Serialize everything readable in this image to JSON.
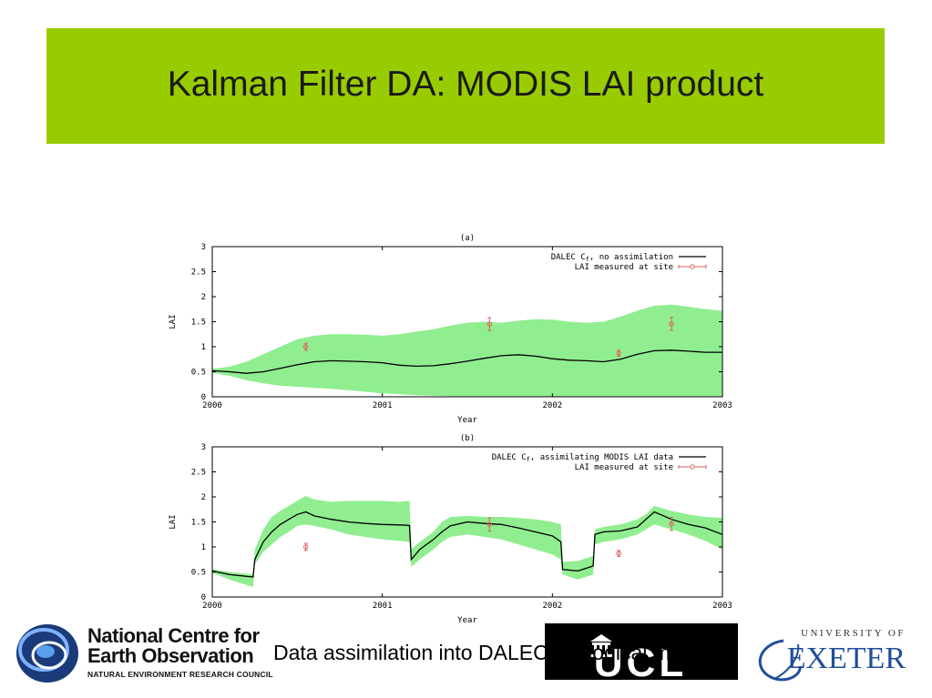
{
  "slide": {
    "title": "Kalman Filter DA: MODIS LAI product",
    "caption": "Data assimilation into DALEC ecological model",
    "banner_color": "#99cc00"
  },
  "logos": {
    "nceo_line1": "National Centre for",
    "nceo_line2": "Earth Observation",
    "nceo_line3": "NATURAL ENVIRONMENT RESEARCH COUNCIL",
    "ucl_text": "UCL",
    "exeter_top": "UNIVERSITY OF",
    "exeter_name": "EXETER"
  },
  "chart_data": [
    {
      "type": "line",
      "title": "(a)",
      "xlabel": "Year",
      "ylabel": "LAI",
      "xlim": [
        2000,
        2003
      ],
      "ylim": [
        0,
        3
      ],
      "x_ticks": [
        "2000",
        "2001",
        "2002",
        "2003"
      ],
      "y_ticks": [
        "0",
        "0.5",
        "1",
        "1.5",
        "2",
        "2.5",
        "3"
      ],
      "legend_position": "top-right",
      "legend": [
        "DALEC C",
        "f",
        ", no assimilation",
        "LAI measured at site"
      ],
      "series": [
        {
          "name": "DALEC Cf, no assimilation",
          "color": "#000000",
          "x": [
            2000,
            2000.1,
            2000.2,
            2000.3,
            2000.4,
            2000.5,
            2000.6,
            2000.7,
            2000.8,
            2000.9,
            2001,
            2001.1,
            2001.2,
            2001.3,
            2001.4,
            2001.5,
            2001.6,
            2001.7,
            2001.8,
            2001.9,
            2002,
            2002.1,
            2002.2,
            2002.3,
            2002.4,
            2002.5,
            2002.6,
            2002.7,
            2002.8,
            2002.9,
            2003
          ],
          "y": [
            0.52,
            0.5,
            0.47,
            0.5,
            0.57,
            0.64,
            0.7,
            0.72,
            0.71,
            0.7,
            0.68,
            0.63,
            0.61,
            0.62,
            0.66,
            0.71,
            0.77,
            0.82,
            0.84,
            0.81,
            0.76,
            0.73,
            0.72,
            0.7,
            0.75,
            0.85,
            0.92,
            0.93,
            0.91,
            0.89,
            0.89
          ],
          "band_upper": [
            0.56,
            0.6,
            0.7,
            0.85,
            1.0,
            1.15,
            1.22,
            1.25,
            1.25,
            1.24,
            1.22,
            1.25,
            1.3,
            1.35,
            1.42,
            1.48,
            1.5,
            1.48,
            1.52,
            1.55,
            1.54,
            1.5,
            1.48,
            1.5,
            1.6,
            1.72,
            1.82,
            1.84,
            1.8,
            1.75,
            1.72
          ],
          "band_lower": [
            0.48,
            0.42,
            0.33,
            0.27,
            0.22,
            0.2,
            0.18,
            0.16,
            0.13,
            0.1,
            0.07,
            0.05,
            0.03,
            0.02,
            0.01,
            0.01,
            0.01,
            0.01,
            0.01,
            0.01,
            0.01,
            0.01,
            0.01,
            0.01,
            0.01,
            0.01,
            0.01,
            0.01,
            0.01,
            0.01,
            0.01
          ],
          "band_color": "#90ee90"
        }
      ],
      "points": {
        "name": "LAI measured at site",
        "color": "#e06060",
        "x": [
          2000.55,
          2001.63,
          2002.39,
          2002.7
        ],
        "y": [
          1.0,
          1.45,
          0.87,
          1.46
        ],
        "err": [
          0.07,
          0.13,
          0.06,
          0.13
        ]
      }
    },
    {
      "type": "line",
      "title": "(b)",
      "xlabel": "Year",
      "ylabel": "LAI",
      "xlim": [
        2000,
        2003
      ],
      "ylim": [
        0,
        3
      ],
      "x_ticks": [
        "2000",
        "2001",
        "2002",
        "2003"
      ],
      "y_ticks": [
        "0",
        "0.5",
        "1",
        "1.5",
        "2",
        "2.5",
        "3"
      ],
      "legend_position": "top-right",
      "legend": [
        "DALEC C",
        "f",
        ", assimilating MODIS LAI data",
        "LAI measured at site"
      ],
      "series": [
        {
          "name": "DALEC Cf, assimilating MODIS LAI data",
          "color": "#000000",
          "x": [
            2000,
            2000.1,
            2000.24,
            2000.25,
            2000.3,
            2000.35,
            2000.4,
            2000.45,
            2000.5,
            2000.55,
            2000.6,
            2000.7,
            2000.8,
            2000.9,
            2001,
            2001.1,
            2001.16,
            2001.17,
            2001.22,
            2001.3,
            2001.35,
            2001.4,
            2001.5,
            2001.6,
            2001.7,
            2001.8,
            2001.9,
            2002,
            2002.05,
            2002.06,
            2002.15,
            2002.24,
            2002.25,
            2002.3,
            2002.4,
            2002.5,
            2002.55,
            2002.6,
            2002.7,
            2002.8,
            2002.9,
            2003
          ],
          "y": [
            0.52,
            0.45,
            0.4,
            0.75,
            1.1,
            1.3,
            1.45,
            1.55,
            1.65,
            1.7,
            1.62,
            1.55,
            1.5,
            1.47,
            1.45,
            1.44,
            1.43,
            0.75,
            0.95,
            1.15,
            1.3,
            1.42,
            1.5,
            1.47,
            1.45,
            1.38,
            1.3,
            1.22,
            1.1,
            0.55,
            0.52,
            0.62,
            1.25,
            1.3,
            1.32,
            1.4,
            1.55,
            1.7,
            1.55,
            1.45,
            1.38,
            1.25
          ],
          "band_upper": [
            0.56,
            0.5,
            0.45,
            0.95,
            1.35,
            1.6,
            1.72,
            1.82,
            1.92,
            2.02,
            1.95,
            1.9,
            1.92,
            1.92,
            1.92,
            1.9,
            1.92,
            0.95,
            1.1,
            1.3,
            1.5,
            1.6,
            1.62,
            1.6,
            1.6,
            1.58,
            1.55,
            1.5,
            1.45,
            0.7,
            0.72,
            0.82,
            1.35,
            1.4,
            1.45,
            1.55,
            1.65,
            1.82,
            1.72,
            1.65,
            1.6,
            1.58
          ],
          "band_lower": [
            0.48,
            0.35,
            0.2,
            0.65,
            0.9,
            1.05,
            1.2,
            1.3,
            1.42,
            1.45,
            1.42,
            1.35,
            1.25,
            1.2,
            1.15,
            1.12,
            1.1,
            0.6,
            0.75,
            0.95,
            1.1,
            1.2,
            1.25,
            1.2,
            1.15,
            1.05,
            0.95,
            0.85,
            0.75,
            0.45,
            0.35,
            0.45,
            1.05,
            1.1,
            1.15,
            1.25,
            1.35,
            1.45,
            1.35,
            1.25,
            1.12,
            0.95
          ],
          "band_color": "#90ee90"
        }
      ],
      "points": {
        "name": "LAI measured at site",
        "color": "#e06060",
        "x": [
          2000.55,
          2001.63,
          2002.39,
          2002.7
        ],
        "y": [
          1.0,
          1.45,
          0.87,
          1.46
        ],
        "err": [
          0.07,
          0.13,
          0.06,
          0.13
        ]
      }
    }
  ]
}
